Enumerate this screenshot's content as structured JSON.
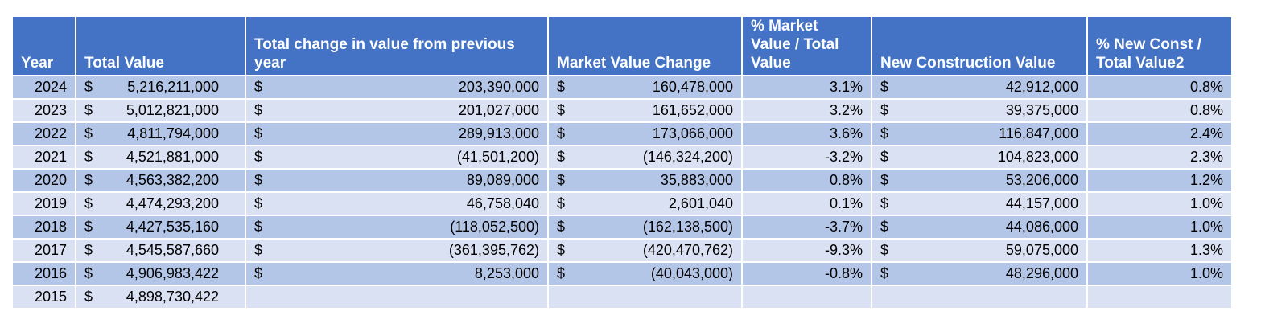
{
  "headers": [
    "Year",
    "Total Value",
    "Total change in value from previous\nyear",
    "Market Value Change",
    "% Market\nValue / Total\nValue",
    "New Construction Value",
    "% New Const /\nTotal Value2"
  ],
  "currency_symbol": "$",
  "rows": [
    {
      "year": "2024",
      "total": "5,216,211,000",
      "change": "203,390,000",
      "market": "160,478,000",
      "pct_market": "3.1%",
      "new_const": "42,912,000",
      "pct_new": "0.8%"
    },
    {
      "year": "2023",
      "total": "5,012,821,000",
      "change": "201,027,000",
      "market": "161,652,000",
      "pct_market": "3.2%",
      "new_const": "39,375,000",
      "pct_new": "0.8%"
    },
    {
      "year": "2022",
      "total": "4,811,794,000",
      "change": "289,913,000",
      "market": "173,066,000",
      "pct_market": "3.6%",
      "new_const": "116,847,000",
      "pct_new": "2.4%"
    },
    {
      "year": "2021",
      "total": "4,521,881,000",
      "change": "(41,501,200)",
      "market": "(146,324,200)",
      "pct_market": "-3.2%",
      "new_const": "104,823,000",
      "pct_new": "2.3%"
    },
    {
      "year": "2020",
      "total": "4,563,382,200",
      "change": "89,089,000",
      "market": "35,883,000",
      "pct_market": "0.8%",
      "new_const": "53,206,000",
      "pct_new": "1.2%"
    },
    {
      "year": "2019",
      "total": "4,474,293,200",
      "change": "46,758,040",
      "market": "2,601,040",
      "pct_market": "0.1%",
      "new_const": "44,157,000",
      "pct_new": "1.0%"
    },
    {
      "year": "2018",
      "total": "4,427,535,160",
      "change": "(118,052,500)",
      "market": "(162,138,500)",
      "pct_market": "-3.7%",
      "new_const": "44,086,000",
      "pct_new": "1.0%"
    },
    {
      "year": "2017",
      "total": "4,545,587,660",
      "change": "(361,395,762)",
      "market": "(420,470,762)",
      "pct_market": "-9.3%",
      "new_const": "59,075,000",
      "pct_new": "1.3%"
    },
    {
      "year": "2016",
      "total": "4,906,983,422",
      "change": "8,253,000",
      "market": "(40,043,000)",
      "pct_market": "-0.8%",
      "new_const": "48,296,000",
      "pct_new": "1.0%"
    },
    {
      "year": "2015",
      "total": "4,898,730,422",
      "change": "",
      "market": "",
      "pct_market": "",
      "new_const": "",
      "pct_new": ""
    }
  ]
}
